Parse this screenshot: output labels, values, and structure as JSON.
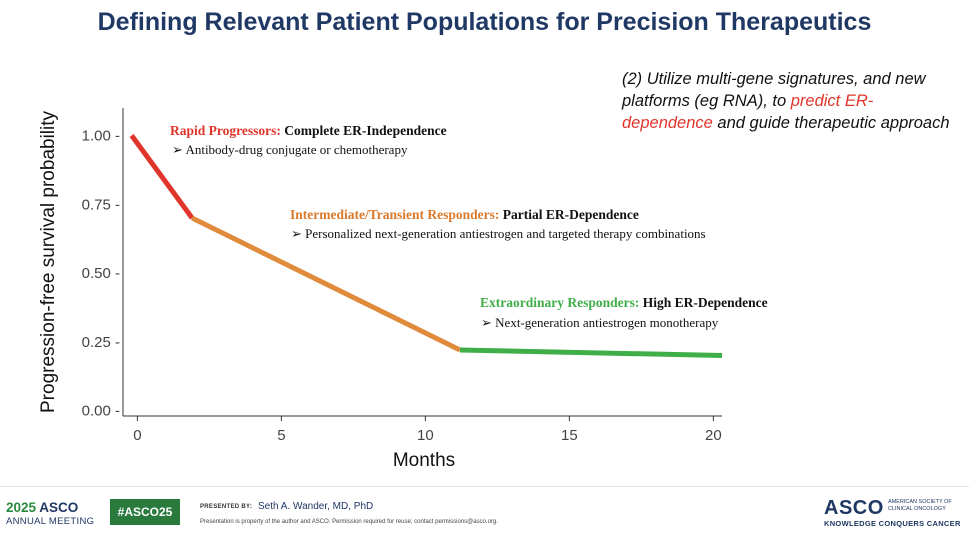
{
  "slide": {
    "title": "Defining Relevant Patient Populations for Precision Therapeutics"
  },
  "callout": {
    "part1": "(2) Utilize multi-gene signatures, and new platforms (eg RNA), to ",
    "highlight": "predict ER-dependence",
    "part2": " and guide therapeutic approach",
    "highlight_color": "#e0352b"
  },
  "chart_data": {
    "type": "line",
    "title": "",
    "xlabel": "Months",
    "ylabel": "Progression-free survival probability",
    "xlim": [
      -0.5,
      20.3
    ],
    "ylim": [
      -0.02,
      1.1
    ],
    "x_ticks": [
      0,
      5,
      10,
      15,
      20
    ],
    "x_tick_labels": [
      "0",
      "5",
      "10",
      "15",
      "20"
    ],
    "y_ticks": [
      0,
      0.25,
      0.5,
      0.75,
      1.0
    ],
    "y_tick_labels": [
      "0.00 -",
      "0.25 -",
      "0.50 -",
      "0.75 -",
      "1.00 -"
    ],
    "series": [
      {
        "name": "Rapid Progressors",
        "color": "#e0352b",
        "x": [
          -0.2,
          1.9
        ],
        "y": [
          1.0,
          0.7
        ]
      },
      {
        "name": "Intermediate/Transient Responders",
        "color": "#e08a3c",
        "x": [
          1.9,
          11.2
        ],
        "y": [
          0.7,
          0.22
        ]
      },
      {
        "name": "Extraordinary Responders",
        "color": "#3fae49",
        "x": [
          11.2,
          20.3
        ],
        "y": [
          0.22,
          0.2
        ]
      }
    ],
    "annotations": [
      {
        "group": "Rapid Progressors:",
        "dependence": "Complete ER-Independence",
        "therapy": "Antibody-drug conjugate or chemotherapy",
        "color": "#e0352b"
      },
      {
        "group": "Intermediate/Transient Responders:",
        "dependence": "Partial ER-Dependence",
        "therapy": "Personalized next-generation antiestrogen and targeted therapy combinations",
        "color": "#d97a2d"
      },
      {
        "group": "Extraordinary Responders:",
        "dependence": "High ER-Dependence",
        "therapy": "Next-generation antiestrogen monotherapy",
        "color": "#3fae49"
      }
    ]
  },
  "footer": {
    "year": "2025",
    "asco": "ASCO",
    "meeting": "ANNUAL MEETING",
    "hashtag": "#ASCO25",
    "presented_by": "PRESENTED BY:",
    "presenter": "Seth A. Wander, MD, PhD",
    "note": "Presentation is property of the author and ASCO. Permission required for reuse; contact permissions@asco.org.",
    "logo": "ASCO",
    "logo_sub": "AMERICAN SOCIETY OF CLINICAL ONCOLOGY",
    "tagline": "KNOWLEDGE CONQUERS CANCER"
  }
}
